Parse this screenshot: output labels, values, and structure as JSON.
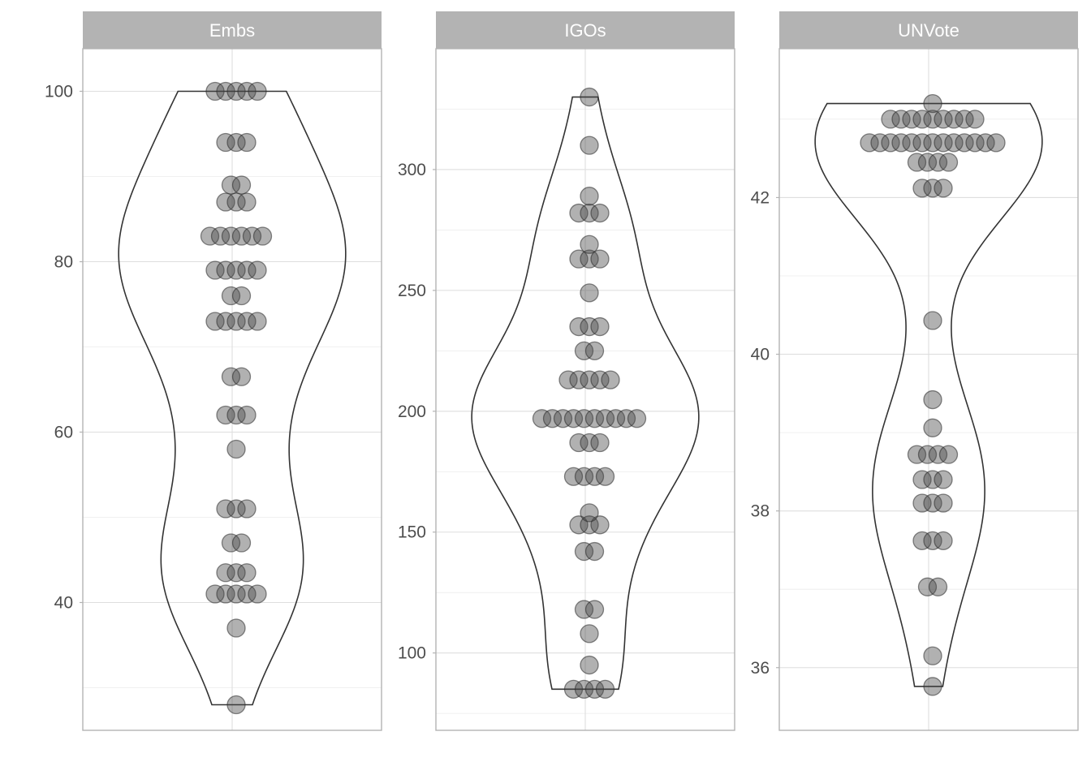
{
  "chart_data": [
    {
      "type": "violin",
      "title": "Embs",
      "xlabel": "",
      "ylabel": "",
      "ylim": [
        25,
        105
      ],
      "yticks": [
        40,
        60,
        80,
        100
      ],
      "grid": true,
      "values": [
        100,
        100,
        100,
        100,
        100,
        94,
        94,
        94,
        89,
        89,
        87,
        87,
        87,
        83,
        83,
        83,
        83,
        83,
        83,
        79,
        79,
        79,
        79,
        79,
        76,
        76,
        73,
        73,
        73,
        73,
        73,
        66.5,
        66.5,
        62,
        62,
        62,
        58,
        51,
        51,
        51,
        47,
        47,
        43.5,
        43.5,
        43.5,
        41,
        41,
        41,
        41,
        41,
        37,
        28
      ]
    },
    {
      "type": "violin",
      "title": "IGOs",
      "xlabel": "",
      "ylabel": "",
      "ylim": [
        68,
        350
      ],
      "yticks": [
        100,
        150,
        200,
        250,
        300
      ],
      "grid": true,
      "values": [
        330,
        310,
        289,
        282,
        282,
        282,
        269,
        263,
        263,
        263,
        249,
        235,
        235,
        235,
        225,
        225,
        213,
        213,
        213,
        213,
        213,
        197,
        197,
        197,
        197,
        197,
        197,
        197,
        197,
        197,
        197,
        187,
        187,
        187,
        173,
        173,
        173,
        173,
        158,
        153,
        153,
        153,
        142,
        142,
        118,
        118,
        108,
        95,
        85,
        85,
        85,
        85
      ]
    },
    {
      "type": "violin",
      "title": "UNVote",
      "xlabel": "",
      "ylabel": "",
      "ylim": [
        35.2,
        43.9
      ],
      "yticks": [
        36,
        38,
        40,
        42
      ],
      "grid": true,
      "values": [
        43.2,
        43,
        43,
        43,
        43,
        43,
        43,
        43,
        43,
        43,
        42.7,
        42.7,
        42.7,
        42.7,
        42.7,
        42.7,
        42.7,
        42.7,
        42.7,
        42.7,
        42.7,
        42.7,
        42.7,
        42.45,
        42.45,
        42.45,
        42.45,
        42.12,
        42.12,
        42.12,
        40.43,
        39.42,
        39.06,
        38.72,
        38.72,
        38.72,
        38.72,
        38.4,
        38.4,
        38.4,
        38.1,
        38.1,
        38.1,
        37.62,
        37.62,
        37.62,
        37.03,
        37.03,
        36.15,
        35.76
      ]
    }
  ]
}
